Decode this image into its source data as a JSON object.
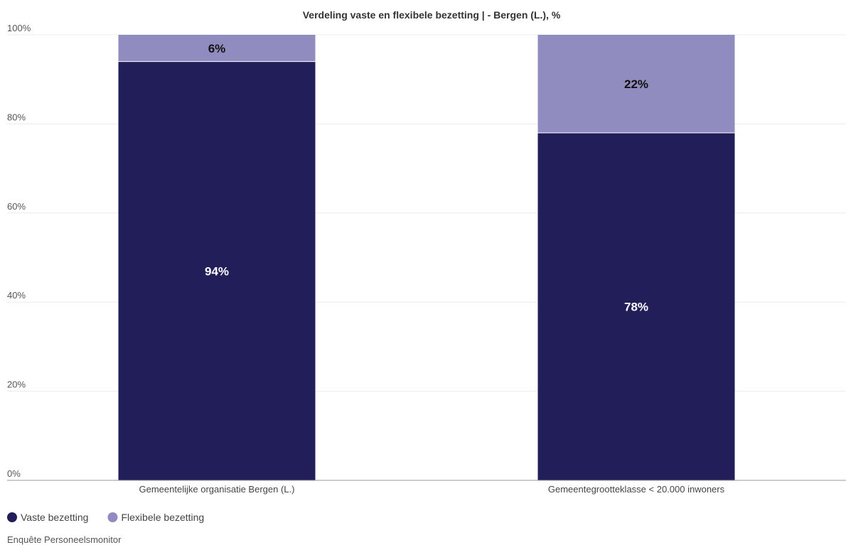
{
  "chart_data": {
    "type": "bar",
    "stacked": true,
    "title": "Verdeling vaste en flexibele bezetting | - Bergen (L.), %",
    "categories": [
      "Gemeentelijke organisatie Bergen (L.)",
      "Gemeentegrootteklasse < 20.000 inwoners"
    ],
    "series": [
      {
        "name": "Vaste bezetting",
        "values": [
          94,
          78
        ],
        "labels": [
          "94%",
          "78%"
        ],
        "color": "#221e5a",
        "label_color": "#ffffff"
      },
      {
        "name": "Flexibele bezetting",
        "values": [
          6,
          22
        ],
        "labels": [
          "6%",
          "22%"
        ],
        "color": "#918cc0",
        "label_color": "#111111"
      }
    ],
    "ylim": [
      0,
      100
    ],
    "yticks": [
      0,
      20,
      40,
      60,
      80,
      100
    ],
    "ytick_labels": [
      "0%",
      "20%",
      "40%",
      "60%",
      "80%",
      "100%"
    ],
    "xlabel": "",
    "ylabel": "",
    "grid": true,
    "legend_position": "bottom-left"
  },
  "source": "Enquête Personeelsmonitor"
}
